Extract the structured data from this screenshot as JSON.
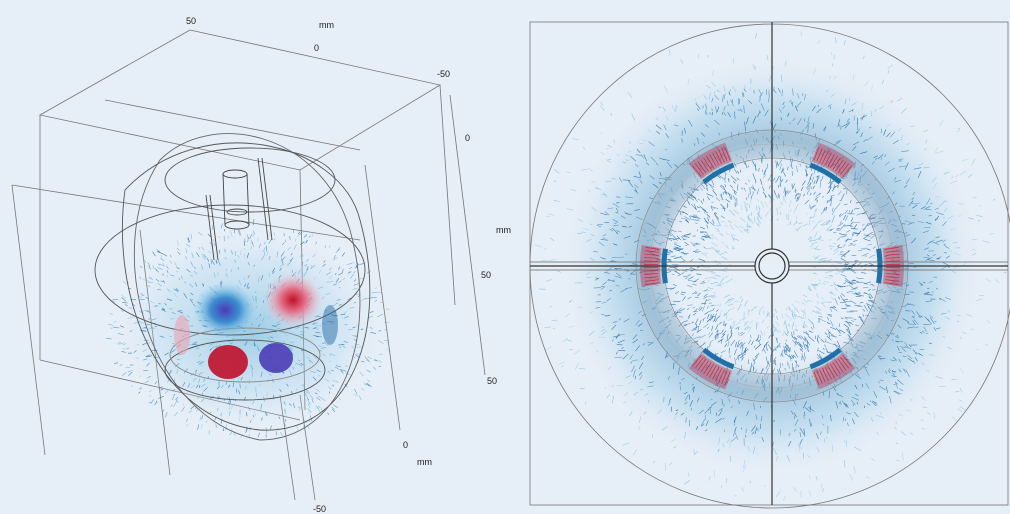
{
  "left_view": {
    "axis_labels": {
      "x_top_50": "50",
      "x_top_unit": "mm",
      "x_top_0": "0",
      "x_top_neg50": "-50",
      "y_right_0": "0",
      "y_right_unit": "mm",
      "y_right_50": "50",
      "z_right_50": "50",
      "z_bottom_0": "0",
      "z_bottom_unit": "mm",
      "z_bottom_neg50": "-50"
    }
  },
  "colors": {
    "background": "#e6eef7",
    "field_blue": "#1f6fa8",
    "field_light_blue": "#5fb0d8",
    "pole_red": "#c8102e",
    "pole_purple": "#5a3fb0",
    "geometry_line": "#555555"
  }
}
